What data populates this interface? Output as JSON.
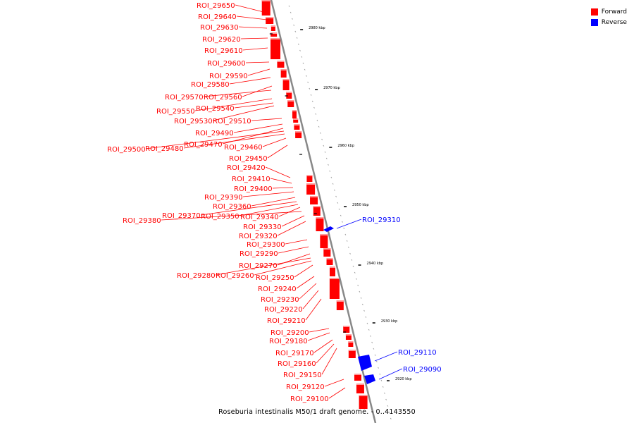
{
  "legend": {
    "forward": {
      "label": "Forward",
      "color": "#ff0000"
    },
    "reverse": {
      "label": "Reverse",
      "color": "#0000ff"
    }
  },
  "caption": "Roseburia intestinalis M50/1 draft genome. - 0..4143550",
  "backbone_color": "#888888",
  "ticks": [
    "2980 kbp",
    "2970 kbp",
    "2960 kbp",
    "2950 kbp",
    "2940 kbp",
    "2930 kbp",
    "2920 kbp"
  ],
  "forward_labels": [
    "ROI_29650",
    "ROI_29640",
    "ROI_29630",
    "ROI_29620",
    "ROI_29610",
    "ROI_29600",
    "ROI_29590",
    "ROI_29580",
    "ROI_29570",
    "ROI_29560",
    "ROI_29550",
    "ROI_29540",
    "ROI_29530",
    "ROI_29510",
    "ROI_29490",
    "ROI_29470",
    "ROI_29500",
    "ROI_29480",
    "ROI_29460",
    "ROI_29450",
    "ROI_29420",
    "ROI_29410",
    "ROI_29400",
    "ROI_29390",
    "ROI_29360",
    "ROI_29370",
    "ROI_29350",
    "ROI_29340",
    "ROI_29380",
    "ROI_29330",
    "ROI_29320",
    "ROI_29300",
    "ROI_29290",
    "ROI_29270",
    "ROI_29280",
    "ROI_29260",
    "ROI_29250",
    "ROI_29240",
    "ROI_29230",
    "ROI_29220",
    "ROI_29210",
    "ROI_29200",
    "ROI_29180",
    "ROI_29170",
    "ROI_29160",
    "ROI_29150",
    "ROI_29120",
    "ROI_29100"
  ],
  "reverse_labels": [
    "ROI_29310",
    "ROI_29110",
    "ROI_29090"
  ]
}
